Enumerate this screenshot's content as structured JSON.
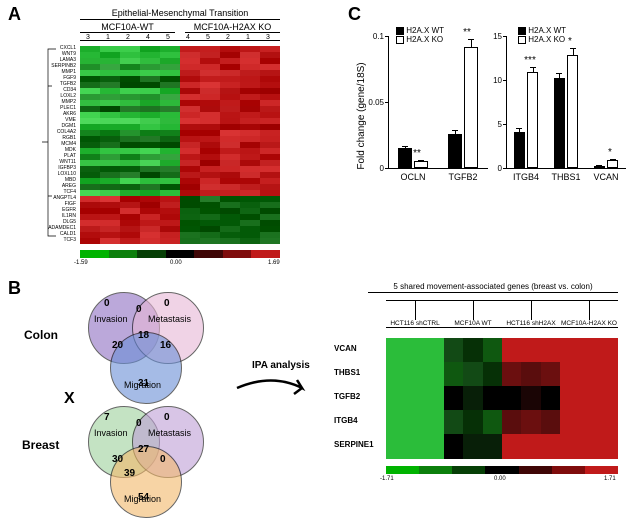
{
  "panelA": {
    "label": "A",
    "title": "Epithelial-Mesenchymal Transition",
    "groups": [
      "MCF10A-WT",
      "MCF10A-H2AX KO"
    ],
    "sample_order_wt": [
      "3",
      "1",
      "2",
      "4",
      "5"
    ],
    "sample_order_ko": [
      "4",
      "5",
      "2",
      "1",
      "3"
    ],
    "genes": [
      "CXCL1",
      "WNT9",
      "LAMA3",
      "SERPINB2",
      "MMP1",
      "FGF9",
      "TGFB2",
      "CD34",
      "LOXL2",
      "MMP2",
      "PLEC1",
      "AKR6",
      "VME",
      "DGM1",
      "COL4A2",
      "RGB1",
      "MCM4",
      "MDK",
      "PLAT",
      "WNT11",
      "IGFBP3",
      "LOXL10",
      "MBD",
      "AREG",
      "TCF4",
      "ANGPTL4",
      "FIGF",
      "EGFR",
      "IL1RN",
      "DLG5",
      "ADAMDEC1",
      "CALD1",
      "TCF3"
    ],
    "colors_wt": [
      "#2bbd3a",
      "#2bbd3a",
      "#35c142",
      "#1f8f28",
      "#2bbd3a",
      "#0c6310",
      "#0c6310",
      "#2bbd3a",
      "#1f8f28",
      "#35c142",
      "#0c6310",
      "#2bbd3a",
      "#35c142",
      "#2bbd3a",
      "#1f8f28",
      "#0c6310",
      "#0c6310",
      "#2bbd3a",
      "#1f8f28",
      "#35c142",
      "#0c6310",
      "#0c6310",
      "#2bbd3a",
      "#0c6310",
      "#2bbd3a",
      "#c01a1a",
      "#b81616",
      "#c01a1a",
      "#c01a1a",
      "#c01a1a",
      "#b81616",
      "#c01a1a",
      "#c01a1a"
    ],
    "colors_ko": [
      "#c01a1a",
      "#b81616",
      "#c01a1a",
      "#c01a1a",
      "#b81616",
      "#c01a1a",
      "#c01a1a",
      "#b81616",
      "#c01a1a",
      "#c01a1a",
      "#b81616",
      "#c01a1a",
      "#c01a1a",
      "#b81616",
      "#c01a1a",
      "#c01a1a",
      "#b81616",
      "#c01a1a",
      "#c01a1a",
      "#b81616",
      "#c01a1a",
      "#b81616",
      "#c01a1a",
      "#b81616",
      "#c01a1a",
      "#0c6310",
      "#0c6310",
      "#0c6310",
      "#0c6310",
      "#0c6310",
      "#0c6310",
      "#0c6310",
      "#0c6310"
    ],
    "colorbar": {
      "min": "-1.59",
      "mid": "0.00",
      "max": "1.69",
      "gradient": [
        "#00b300",
        "#0c7f0c",
        "#063f06",
        "#000000",
        "#3f0606",
        "#7f0c0c",
        "#c01a1a"
      ]
    }
  },
  "panelB": {
    "label": "B",
    "colon_label": "Colon",
    "breast_label": "Breast",
    "ipa_label": "IPA analysis",
    "x_label": "X",
    "colon": {
      "circles": {
        "invasion": {
          "color": "#8e6fc2",
          "label": "Invasion"
        },
        "metastasis": {
          "color": "#e7b7d6",
          "label": "Metastasis"
        },
        "migration": {
          "color": "#6a8fd6",
          "label": "Migration"
        }
      },
      "nums": {
        "inv_only": "0",
        "met_only": "0",
        "mig_only": "31",
        "inv_mig": "20",
        "met_mig": "16",
        "inv_met": "0",
        "all": "18"
      }
    },
    "breast": {
      "circles": {
        "invasion": {
          "color": "#9dd29c",
          "label": "Invasion"
        },
        "metastasis": {
          "color": "#bfa0d6",
          "label": "Metastasis"
        },
        "migration": {
          "color": "#f3b96b",
          "label": "Migration"
        }
      },
      "nums": {
        "inv_only": "7",
        "met_only": "0",
        "mig_only": "54",
        "inv_mig": "30",
        "met_mig": "0",
        "inv_met": "0",
        "all": "27",
        "extra": "39"
      }
    },
    "heatmap": {
      "title": "5 shared movement-associated genes (breast vs. colon)",
      "samples": [
        "HCT116 shCTRL",
        "MCF10A WT",
        "HCT116 shH2AX",
        "MCF10A-H2AX KO"
      ],
      "genes": [
        "VCAN",
        "THBS1",
        "TGFB2",
        "ITGB4",
        "SERPINE1"
      ],
      "matrix": [
        [
          "#2bbd3a",
          "#2bbd3a",
          "#2bbd3a",
          "#124a15",
          "#063006",
          "#0f5810",
          "#c01a1a",
          "#c01a1a",
          "#c01a1a",
          "#c01a1a",
          "#c01a1a",
          "#c01a1a"
        ],
        [
          "#2bbd3a",
          "#2bbd3a",
          "#2bbd3a",
          "#0f5810",
          "#124a15",
          "#063006",
          "#6b0f0f",
          "#5a0d0d",
          "#6b0f0f",
          "#c01a1a",
          "#c01a1a",
          "#c01a1a"
        ],
        [
          "#2bbd3a",
          "#2bbd3a",
          "#2bbd3a",
          "#000000",
          "#081f08",
          "#000000",
          "#000000",
          "#1a0505",
          "#000000",
          "#c01a1a",
          "#c01a1a",
          "#c01a1a"
        ],
        [
          "#2bbd3a",
          "#2bbd3a",
          "#2bbd3a",
          "#124a15",
          "#063006",
          "#0f5810",
          "#5a0d0d",
          "#6b0f0f",
          "#5a0d0d",
          "#c01a1a",
          "#c01a1a",
          "#c01a1a"
        ],
        [
          "#2bbd3a",
          "#2bbd3a",
          "#2bbd3a",
          "#000000",
          "#081f08",
          "#081f08",
          "#c01a1a",
          "#c01a1a",
          "#c01a1a",
          "#c01a1a",
          "#c01a1a",
          "#c01a1a"
        ]
      ],
      "colorbar": {
        "min": "-1.71",
        "mid": "0.00",
        "max": "1.71",
        "gradient": [
          "#00b300",
          "#0c7f0c",
          "#063f06",
          "#000000",
          "#3f0606",
          "#7f0c0c",
          "#c01a1a"
        ]
      }
    }
  },
  "panelC": {
    "label": "C",
    "ylabel": "Fold change (gene/18S)",
    "legend": {
      "wt": "H2A.X WT",
      "ko": "H2A.X KO"
    },
    "chart1": {
      "ymax": 0.1,
      "ytick_step": 0.05,
      "genes": [
        "OCLN",
        "TGFB2"
      ],
      "wt": [
        0.0155,
        0.026
      ],
      "ko": [
        0.0055,
        0.092
      ],
      "wt_err": [
        0.0015,
        0.003
      ],
      "ko_err": [
        0.0008,
        0.006
      ],
      "stars": [
        "**",
        "**"
      ]
    },
    "chart2": {
      "ymax": 15,
      "ytick_step": 5,
      "genes": [
        "ITGB4",
        "THBS1",
        "VCAN"
      ],
      "wt": [
        4.1,
        10.2,
        0.27
      ],
      "ko": [
        10.9,
        12.8,
        0.9
      ],
      "wt_err": [
        0.4,
        0.6,
        0.05
      ],
      "ko_err": [
        0.6,
        0.8,
        0.08
      ],
      "stars": [
        "***",
        "*",
        "*"
      ]
    },
    "colors": {
      "wt": "#000000",
      "ko": "#ffffff",
      "ko_border": "#000000"
    }
  }
}
